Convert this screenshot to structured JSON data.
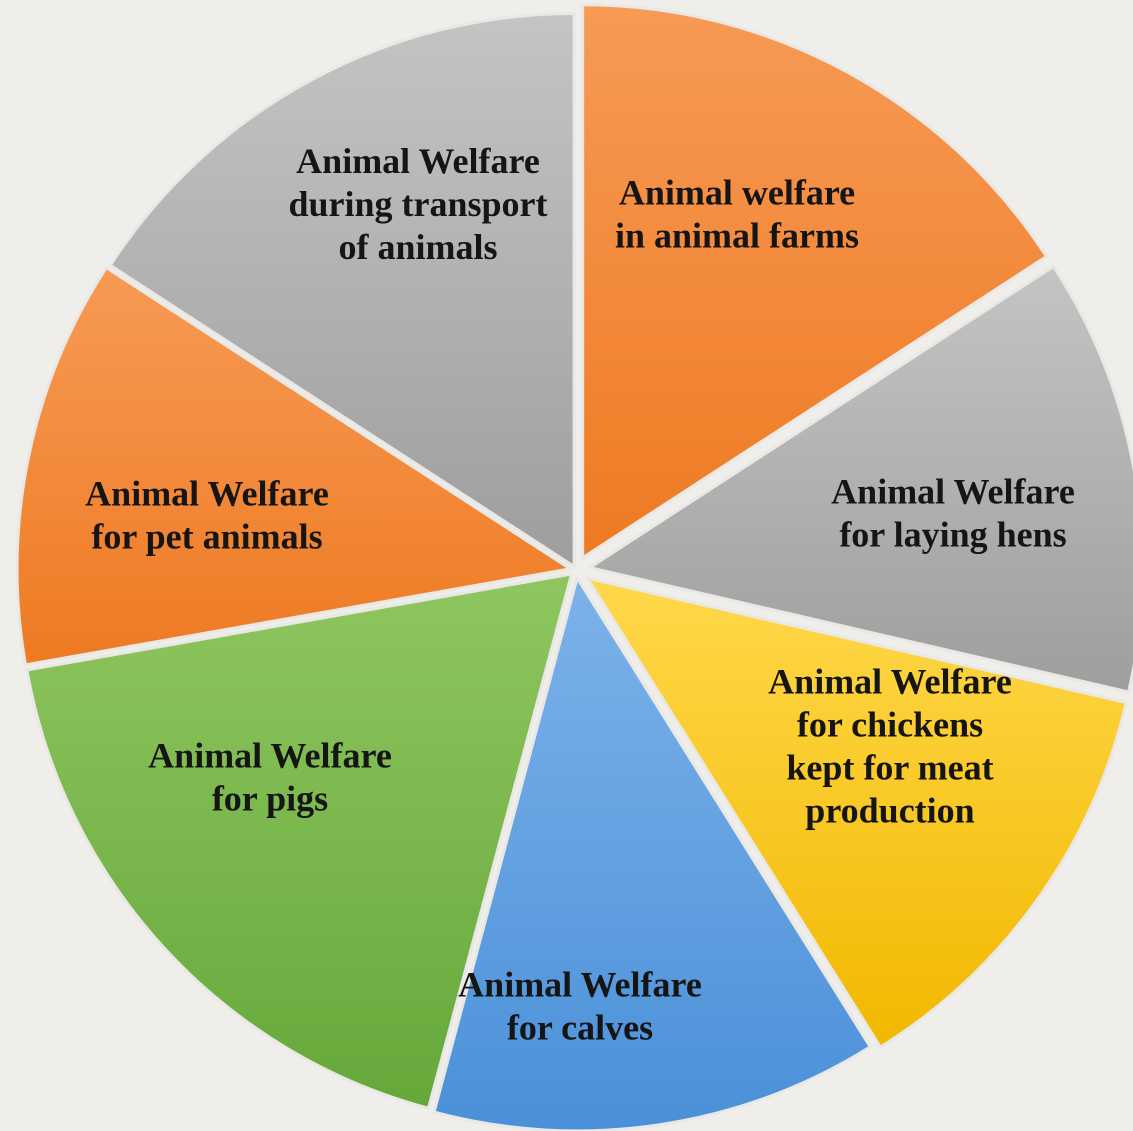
{
  "chart_data": {
    "type": "pie",
    "slices": [
      {
        "lines": [
          "Animal welfare",
          "in animal farms"
        ],
        "color": "orange"
      },
      {
        "lines": [
          "Animal Welfare",
          "for laying hens"
        ],
        "color": "gray"
      },
      {
        "lines": [
          "Animal Welfare",
          "for chickens",
          "kept for meat",
          "production"
        ],
        "color": "yellow"
      },
      {
        "lines": [
          "Animal Welfare",
          "for calves"
        ],
        "color": "blue"
      },
      {
        "lines": [
          "Animal Welfare",
          "for pigs"
        ],
        "color": "green"
      },
      {
        "lines": [
          "Animal Welfare",
          "for pet animals"
        ],
        "color": "orange"
      },
      {
        "lines": [
          "Animal Welfare",
          "during transport",
          "of animals"
        ],
        "color": "gray"
      }
    ],
    "gradients": {
      "orange": [
        "#f79a55",
        "#ee7a22"
      ],
      "gray": [
        "#c4c4c4",
        "#9e9e9e"
      ],
      "yellow": [
        "#ffd84a",
        "#f2b800"
      ],
      "blue": [
        "#7db2ea",
        "#4a90d8"
      ],
      "green": [
        "#8fc65f",
        "#65a83a"
      ]
    }
  }
}
